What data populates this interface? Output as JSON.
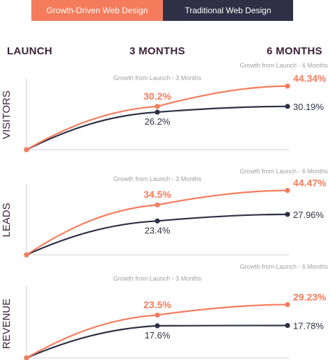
{
  "legend": {
    "growth": "Growth-Driven Web Design",
    "traditional": "Traditional Web Design"
  },
  "columns": {
    "launch": "LAUNCH",
    "three": "3 MONTHS",
    "six": "6 MONTHS"
  },
  "colors": {
    "growth": "#f47c5c",
    "traditional": "#2f3045",
    "axis": "#3a2238",
    "note": "#a0a0a0"
  },
  "chart_data": [
    {
      "type": "line",
      "ylabel": "VISITORS",
      "x": [
        "LAUNCH",
        "3 MONTHS",
        "6 MONTHS"
      ],
      "series": [
        {
          "name": "Growth-Driven Web Design",
          "values": [
            0,
            30.2,
            44.34
          ],
          "labels": [
            "",
            "30.2%",
            "44.34%"
          ]
        },
        {
          "name": "Traditional Web Design",
          "values": [
            0,
            26.2,
            30.19
          ],
          "labels": [
            "",
            "26.2%",
            "30.19%"
          ]
        }
      ],
      "notes": [
        "Growth from Launch - 3 Months",
        "Growth from Launch - 6 Months"
      ]
    },
    {
      "type": "line",
      "ylabel": "LEADS",
      "x": [
        "LAUNCH",
        "3 MONTHS",
        "6 MONTHS"
      ],
      "series": [
        {
          "name": "Growth-Driven Web Design",
          "values": [
            0,
            34.5,
            44.47
          ],
          "labels": [
            "",
            "34.5%",
            "44.47%"
          ]
        },
        {
          "name": "Traditional Web Design",
          "values": [
            0,
            23.4,
            27.96
          ],
          "labels": [
            "",
            "23.4%",
            "27.96%"
          ]
        }
      ],
      "notes": [
        "Growth from Launch - 3 Months",
        "Growth from Launch - 6 Months"
      ]
    },
    {
      "type": "line",
      "ylabel": "REVENUE",
      "x": [
        "LAUNCH",
        "3 MONTHS",
        "6 MONTHS"
      ],
      "series": [
        {
          "name": "Growth-Driven Web Design",
          "values": [
            0,
            23.5,
            29.23
          ],
          "labels": [
            "",
            "23.5%",
            "29.23%"
          ]
        },
        {
          "name": "Traditional Web Design",
          "values": [
            0,
            17.6,
            17.78
          ],
          "labels": [
            "",
            "17.6%",
            "17.78%"
          ]
        }
      ],
      "notes": [
        "Growth from Launch - 3 Months",
        "Growth from Launch - 6 Months"
      ]
    }
  ]
}
